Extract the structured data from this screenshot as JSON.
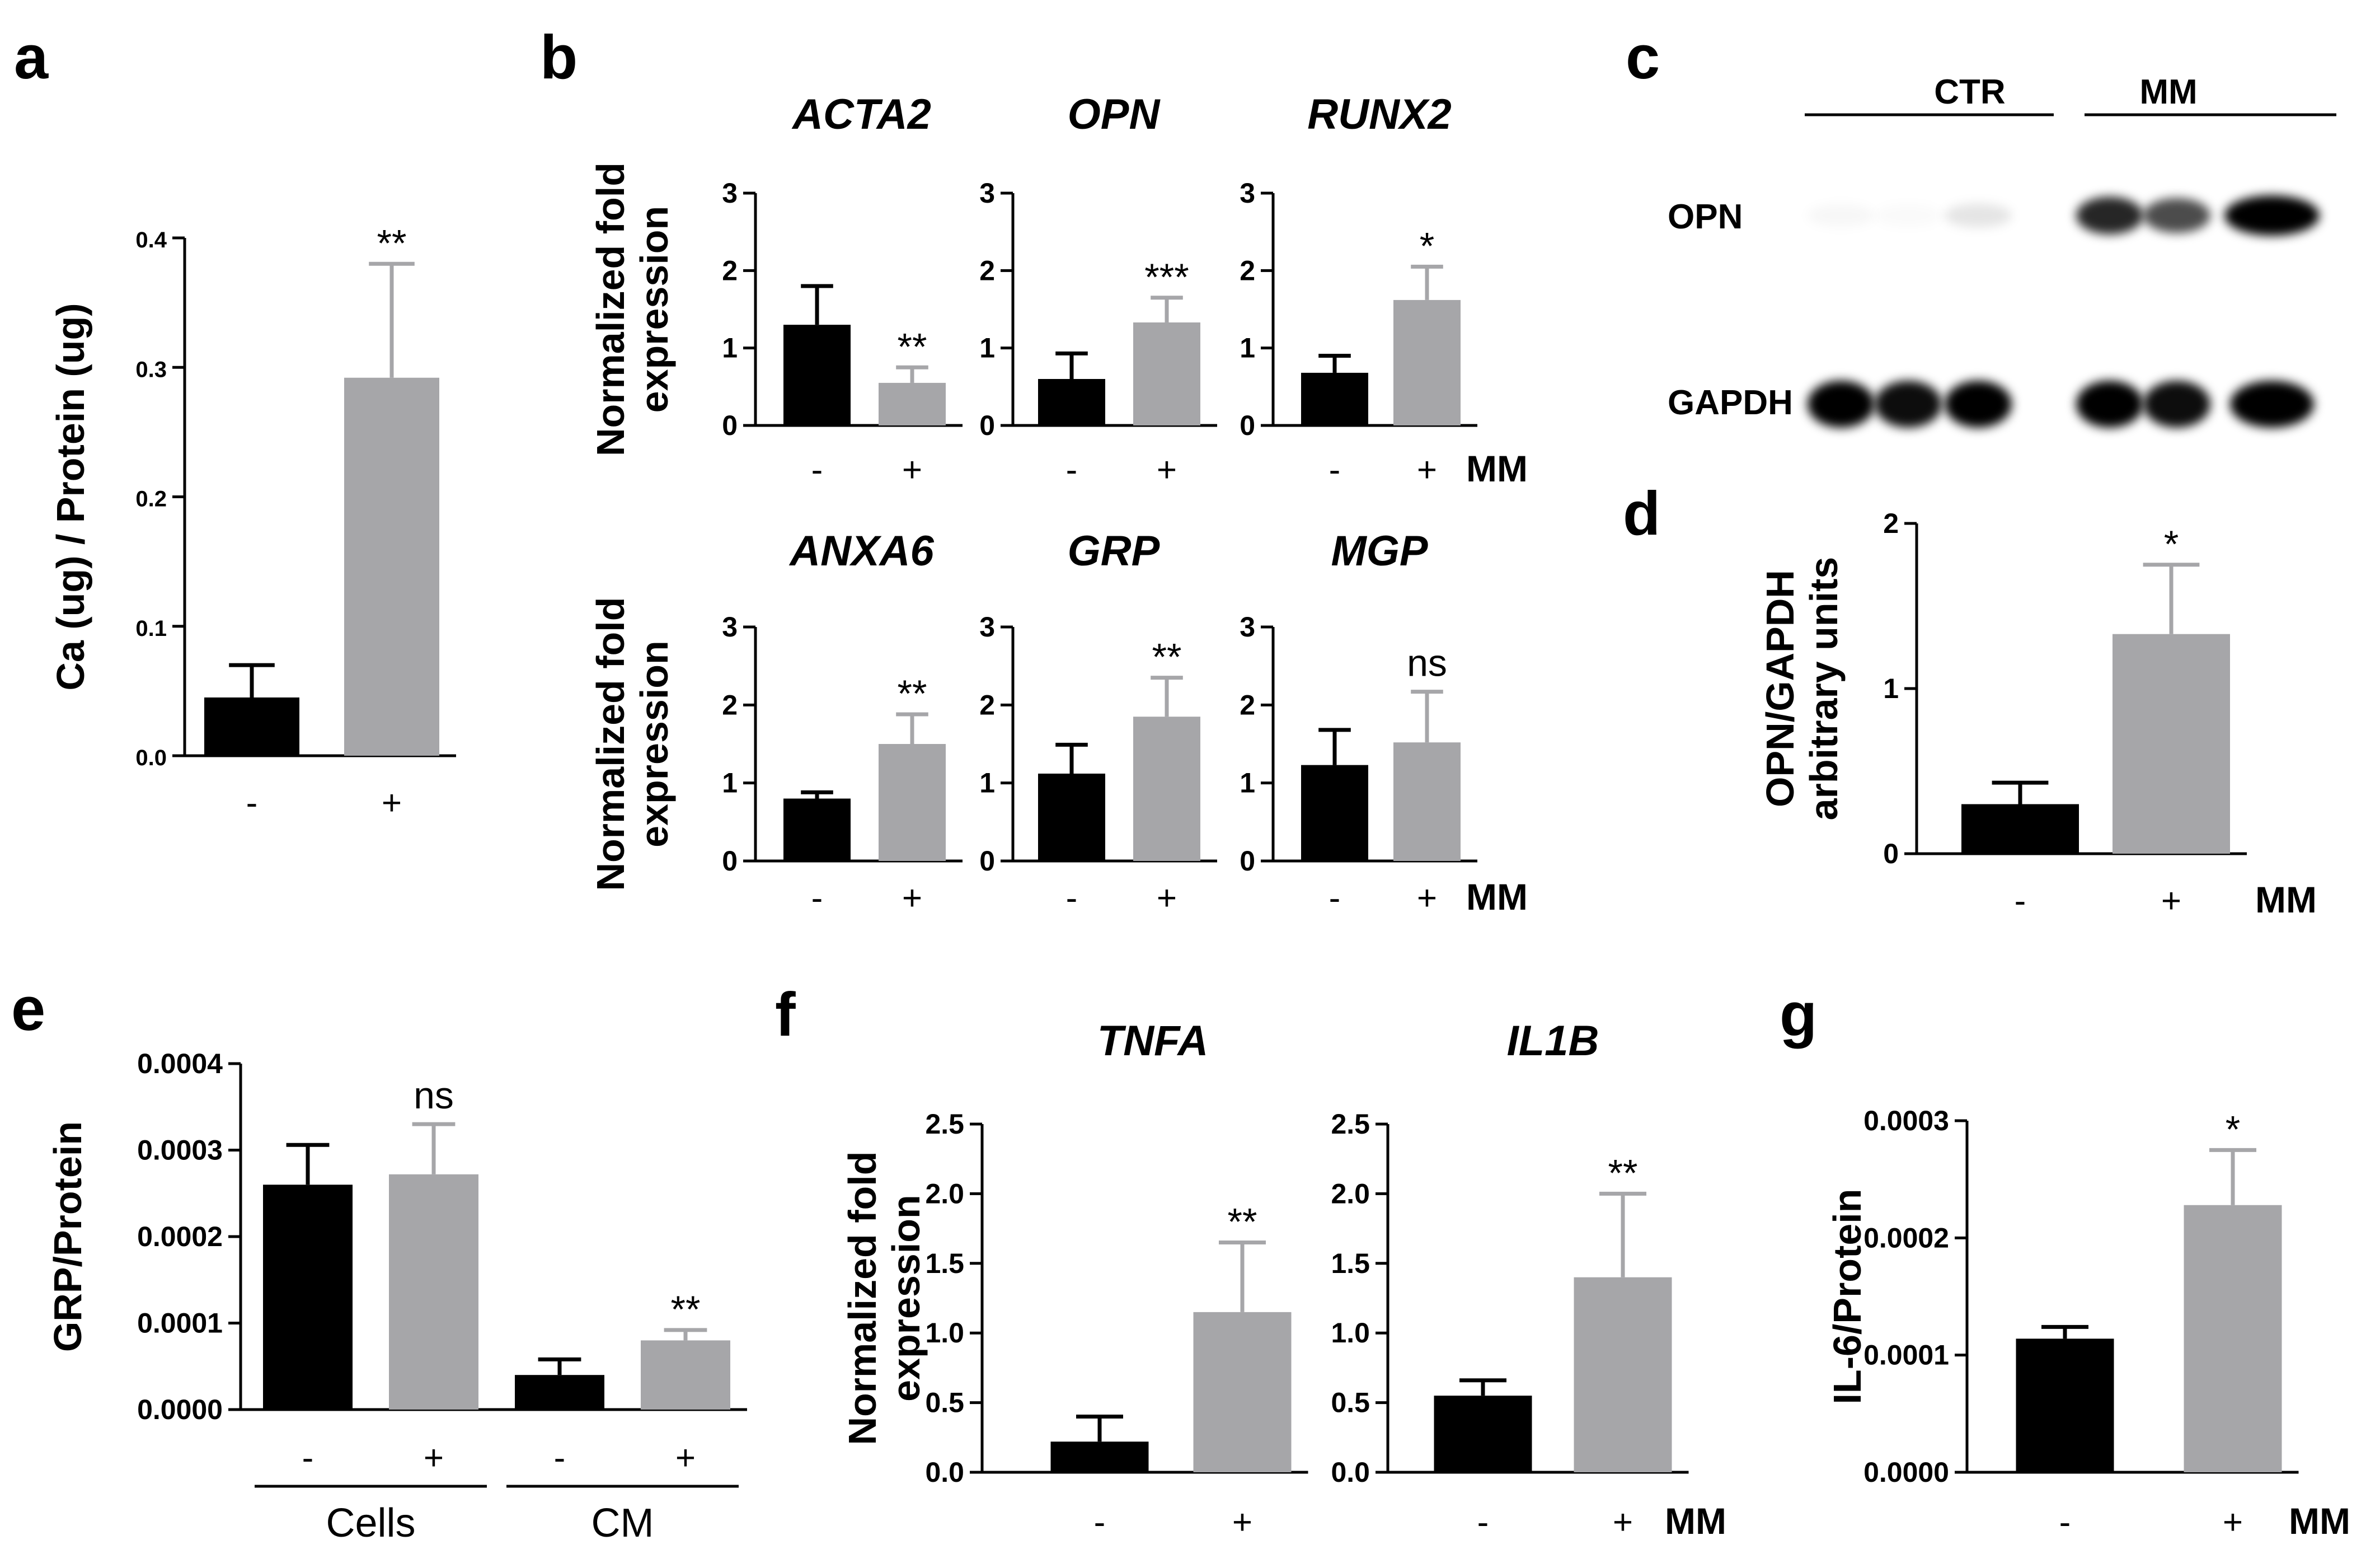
{
  "colors": {
    "minus": "#000000",
    "plus": "#a6a6a9",
    "axis": "#000000"
  },
  "panel_labels": {
    "a": "a",
    "b": "b",
    "c": "c",
    "d": "d",
    "e": "e",
    "f": "f",
    "g": "g"
  },
  "mm_label": "MM",
  "chart_data": [
    {
      "id": "a",
      "type": "bar",
      "ylabel": "Ca (ug) / Protein (ug)",
      "ylim": [
        0,
        0.4
      ],
      "yticks": [
        "0.0",
        "0.1",
        "0.2",
        "0.3",
        "0.4"
      ],
      "categories": [
        "-",
        "+"
      ],
      "values": [
        0.045,
        0.292
      ],
      "errors": [
        0.025,
        0.088
      ],
      "significance": [
        "",
        "**"
      ]
    },
    {
      "id": "b-ACTA2",
      "type": "bar",
      "title": "ACTA2",
      "ylabel": "Normalized fold expression",
      "ylim": [
        0,
        3
      ],
      "yticks": [
        "0",
        "1",
        "2",
        "3"
      ],
      "categories": [
        "-",
        "+"
      ],
      "values": [
        1.3,
        0.55
      ],
      "errors": [
        0.5,
        0.2
      ],
      "significance": [
        "",
        "**"
      ]
    },
    {
      "id": "b-OPN",
      "type": "bar",
      "title": "OPN",
      "ylim": [
        0,
        3
      ],
      "yticks": [
        "0",
        "1",
        "2",
        "3"
      ],
      "categories": [
        "-",
        "+"
      ],
      "values": [
        0.6,
        1.33
      ],
      "errors": [
        0.33,
        0.32
      ],
      "significance": [
        "",
        "***"
      ]
    },
    {
      "id": "b-RUNX2",
      "type": "bar",
      "title": "RUNX2",
      "ylim": [
        0,
        3
      ],
      "yticks": [
        "0",
        "1",
        "2",
        "3"
      ],
      "categories": [
        "-",
        "+"
      ],
      "values": [
        0.68,
        1.62
      ],
      "errors": [
        0.22,
        0.43
      ],
      "significance": [
        "",
        "*"
      ]
    },
    {
      "id": "b-ANXA6",
      "type": "bar",
      "title": "ANXA6",
      "ylabel": "Normalized fold expression",
      "ylim": [
        0,
        3
      ],
      "yticks": [
        "0",
        "1",
        "2",
        "3"
      ],
      "categories": [
        "-",
        "+"
      ],
      "values": [
        0.8,
        1.5
      ],
      "errors": [
        0.08,
        0.38
      ],
      "significance": [
        "",
        "**"
      ]
    },
    {
      "id": "b-GRP",
      "type": "bar",
      "title": "GRP",
      "ylim": [
        0,
        3
      ],
      "yticks": [
        "0",
        "1",
        "2",
        "3"
      ],
      "categories": [
        "-",
        "+"
      ],
      "values": [
        1.12,
        1.85
      ],
      "errors": [
        0.37,
        0.5
      ],
      "significance": [
        "",
        "**"
      ]
    },
    {
      "id": "b-MGP",
      "type": "bar",
      "title": "MGP",
      "ylim": [
        0,
        3
      ],
      "yticks": [
        "0",
        "1",
        "2",
        "3"
      ],
      "categories": [
        "-",
        "+"
      ],
      "values": [
        1.23,
        1.52
      ],
      "errors": [
        0.45,
        0.65
      ],
      "significance": [
        "",
        "ns"
      ]
    },
    {
      "id": "d",
      "type": "bar",
      "ylabel": "OPN/GAPDH arbitrary units",
      "ylim": [
        0,
        2
      ],
      "yticks": [
        "0",
        "1",
        "2"
      ],
      "categories": [
        "-",
        "+"
      ],
      "values": [
        0.3,
        1.33
      ],
      "errors": [
        0.13,
        0.42
      ],
      "significance": [
        "",
        "*"
      ]
    },
    {
      "id": "e",
      "type": "bar",
      "ylabel": "GRP/Protein",
      "ylim": [
        0,
        0.0004
      ],
      "yticks": [
        "0.0000",
        "0.0001",
        "0.0002",
        "0.0003",
        "0.0004"
      ],
      "categories": [
        "-",
        "+",
        "-",
        "+"
      ],
      "groups": [
        "Cells",
        "CM"
      ],
      "values": [
        0.00026,
        0.000272,
        4e-05,
        8e-05
      ],
      "errors": [
        4.6e-05,
        5.8e-05,
        1.8e-05,
        1.2e-05
      ],
      "significance": [
        "",
        "ns",
        "",
        "**"
      ]
    },
    {
      "id": "f-TNFA",
      "type": "bar",
      "title": "TNFA",
      "ylabel": "Normalized fold expression",
      "ylim": [
        0,
        2.5
      ],
      "yticks": [
        "0.0",
        "0.5",
        "1.0",
        "1.5",
        "2.0",
        "2.5"
      ],
      "categories": [
        "-",
        "+"
      ],
      "values": [
        0.22,
        1.15
      ],
      "errors": [
        0.18,
        0.5
      ],
      "significance": [
        "",
        "**"
      ]
    },
    {
      "id": "f-IL1B",
      "type": "bar",
      "title": "IL1B",
      "ylim": [
        0,
        2.5
      ],
      "yticks": [
        "0.0",
        "0.5",
        "1.0",
        "1.5",
        "2.0",
        "2.5"
      ],
      "categories": [
        "-",
        "+"
      ],
      "values": [
        0.55,
        1.4
      ],
      "errors": [
        0.11,
        0.6
      ],
      "significance": [
        "",
        "**"
      ]
    },
    {
      "id": "g",
      "type": "bar",
      "ylabel": "IL-6/Protein",
      "ylim": [
        0,
        0.0003
      ],
      "yticks": [
        "0.0000",
        "0.0001",
        "0.0002",
        "0.0003"
      ],
      "categories": [
        "-",
        "+"
      ],
      "values": [
        0.000114,
        0.000228
      ],
      "errors": [
        1e-05,
        4.7e-05
      ],
      "significance": [
        "",
        "*"
      ]
    }
  ],
  "blot": {
    "groups": [
      "CTR",
      "MM"
    ],
    "rows": [
      "OPN",
      "GAPDH"
    ],
    "opn_intensity": [
      0.03,
      0.02,
      0.1,
      0.85,
      0.7,
      1.0
    ],
    "gapdh_intensity": [
      1.0,
      0.95,
      1.0,
      1.0,
      0.95,
      1.0
    ]
  }
}
